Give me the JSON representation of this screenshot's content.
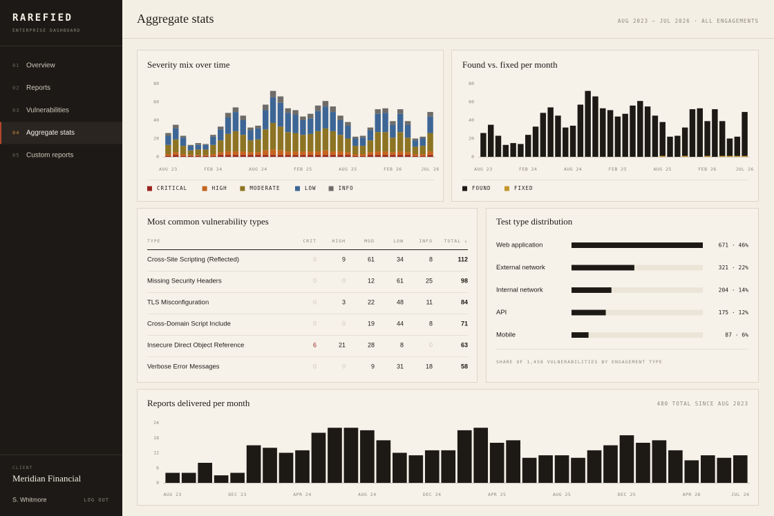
{
  "sidebar": {
    "brand": "RAREFIED",
    "tagline": "ENTERPRISE DASHBOARD",
    "nav": [
      {
        "number": "01",
        "label": "Overview",
        "active": false
      },
      {
        "number": "02",
        "label": "Reports",
        "active": false
      },
      {
        "number": "03",
        "label": "Vulnerabilities",
        "active": false
      },
      {
        "number": "04",
        "label": "Aggregate stats",
        "active": true
      },
      {
        "number": "05",
        "label": "Custom reports",
        "active": false
      }
    ],
    "client_label": "CLIENT",
    "client": "Meridian Financial",
    "user": "S. Whitmore",
    "logout": "LOG OUT"
  },
  "header": {
    "title": "Aggregate stats",
    "range": "AUG 2023 – JUL 2026 · ALL ENGAGEMENTS"
  },
  "chart_data": [
    {
      "type": "stacked_bar",
      "title": "Severity mix over time",
      "categories": [
        "AUG 23",
        null,
        null,
        null,
        null,
        null,
        "FEB 24",
        null,
        null,
        null,
        null,
        null,
        "AUG 24",
        null,
        null,
        null,
        null,
        null,
        "FEB 25",
        null,
        null,
        null,
        null,
        null,
        "AUG 25",
        null,
        null,
        null,
        null,
        null,
        "FEB 26",
        null,
        null,
        null,
        null,
        "JUL 26"
      ],
      "series": [
        {
          "name": "CRITICAL",
          "color": "#9a2420",
          "values": [
            1,
            2,
            1,
            1,
            1,
            1,
            1,
            2,
            2,
            2,
            2,
            2,
            2,
            2,
            2,
            2,
            2,
            2,
            2,
            2,
            2,
            2,
            2,
            2,
            2,
            1,
            1,
            2,
            2,
            2,
            2,
            2,
            2,
            1,
            1,
            2
          ]
        },
        {
          "name": "HIGH",
          "color": "#c4651f",
          "values": [
            2,
            3,
            2,
            1,
            1,
            1,
            2,
            3,
            4,
            4,
            4,
            3,
            3,
            5,
            6,
            5,
            4,
            4,
            4,
            4,
            4,
            5,
            4,
            4,
            3,
            2,
            2,
            3,
            4,
            4,
            3,
            4,
            3,
            2,
            2,
            4
          ]
        },
        {
          "name": "MODERATE",
          "color": "#8c7424",
          "values": [
            10,
            14,
            9,
            5,
            6,
            6,
            10,
            13,
            19,
            22,
            18,
            13,
            14,
            23,
            29,
            26,
            21,
            20,
            18,
            19,
            22,
            24,
            22,
            18,
            15,
            9,
            9,
            13,
            21,
            21,
            16,
            21,
            16,
            8,
            9,
            20
          ]
        },
        {
          "name": "LOW",
          "color": "#3d6696",
          "values": [
            10,
            12,
            9,
            5,
            5,
            5,
            9,
            12,
            18,
            21,
            16,
            11,
            12,
            21,
            28,
            26,
            21,
            20,
            16,
            17,
            22,
            24,
            21,
            16,
            14,
            8,
            9,
            11,
            20,
            21,
            14,
            20,
            14,
            7,
            8,
            18
          ]
        },
        {
          "name": "INFO",
          "color": "#6e6c69",
          "values": [
            3,
            4,
            2,
            1,
            2,
            1,
            2,
            3,
            5,
            5,
            5,
            3,
            3,
            6,
            7,
            7,
            5,
            5,
            4,
            5,
            6,
            6,
            6,
            5,
            4,
            2,
            2,
            3,
            5,
            5,
            4,
            5,
            4,
            2,
            2,
            5
          ]
        }
      ],
      "ylim": [
        0,
        80
      ],
      "yticks": [
        0,
        20,
        40,
        60,
        80
      ],
      "grid": false
    },
    {
      "type": "overlay_bar",
      "title": "Found vs. fixed per month",
      "categories": [
        "AUG 23",
        null,
        null,
        null,
        null,
        null,
        "FEB 24",
        null,
        null,
        null,
        null,
        null,
        "AUG 24",
        null,
        null,
        null,
        null,
        null,
        "FEB 25",
        null,
        null,
        null,
        null,
        null,
        "AUG 25",
        null,
        null,
        null,
        null,
        null,
        "FEB 26",
        null,
        null,
        null,
        null,
        "JUL 26"
      ],
      "series": [
        {
          "name": "FOUND",
          "color": "#1d1a16",
          "values": [
            26,
            35,
            23,
            13,
            15,
            14,
            24,
            33,
            48,
            54,
            45,
            32,
            34,
            57,
            72,
            66,
            53,
            51,
            44,
            47,
            56,
            61,
            55,
            45,
            38,
            22,
            23,
            32,
            52,
            53,
            39,
            52,
            39,
            20,
            22,
            49
          ]
        },
        {
          "name": "FIXED",
          "color": "#c4962f",
          "values": [
            0,
            0,
            0,
            0,
            0,
            0,
            0,
            0,
            0,
            0,
            0,
            0,
            0,
            0,
            0,
            0,
            0,
            0,
            0,
            0,
            0,
            0,
            0,
            0,
            1,
            0,
            0,
            1,
            0,
            0,
            1,
            0,
            1,
            1,
            1,
            1
          ]
        }
      ],
      "ylim": [
        0,
        80
      ],
      "yticks": [
        0,
        20,
        40,
        60,
        80
      ],
      "grid": false
    },
    {
      "type": "bar",
      "title": "Reports delivered per month",
      "subtitle": "480 TOTAL SINCE AUG 2023",
      "categories": [
        "AUG 23",
        null,
        null,
        null,
        "DEC 23",
        null,
        null,
        null,
        "APR 24",
        null,
        null,
        null,
        "AUG 24",
        null,
        null,
        null,
        "DEC 24",
        null,
        null,
        null,
        "APR 25",
        null,
        null,
        null,
        "AUG 25",
        null,
        null,
        null,
        "DEC 25",
        null,
        null,
        null,
        "APR 26",
        null,
        null,
        "JUL 26"
      ],
      "values": [
        4,
        4,
        8,
        3,
        4,
        15,
        14,
        12,
        13,
        20,
        22,
        22,
        21,
        17,
        12,
        11,
        13,
        13,
        21,
        22,
        16,
        17,
        10,
        11,
        11,
        10,
        13,
        15,
        19,
        16,
        17,
        13,
        9,
        11,
        10,
        11
      ],
      "color": "#1d1a16",
      "ylim": [
        0,
        24
      ],
      "yticks": [
        0,
        6,
        12,
        18,
        24
      ],
      "grid": false
    },
    {
      "type": "hbar",
      "title": "Test type distribution",
      "categories": [
        "Web application",
        "External network",
        "Internal network",
        "API",
        "Mobile"
      ],
      "values": [
        671,
        321,
        204,
        175,
        87
      ],
      "value_labels": [
        "671 · 46%",
        "321 · 22%",
        "204 · 14%",
        "175 · 12%",
        "87 · 6%"
      ],
      "color": "#1d1a16",
      "track_color": "#ebe5d8",
      "xlim": [
        0,
        671
      ],
      "note": "SHARE OF 1,458 VULNERABILITIES BY ENGAGEMENT TYPE"
    }
  ],
  "table": {
    "title": "Most common vulnerability types",
    "columns": [
      "TYPE",
      "CRIT",
      "HIGH",
      "MOD",
      "LOW",
      "INFO",
      "TOTAL ↓"
    ],
    "rows": [
      [
        "Cross-Site Scripting (Reflected)",
        0,
        9,
        61,
        34,
        8,
        112
      ],
      [
        "Missing Security Headers",
        0,
        0,
        12,
        61,
        25,
        98
      ],
      [
        "TLS Misconfiguration",
        0,
        3,
        22,
        48,
        11,
        84
      ],
      [
        "Cross-Domain Script Include",
        0,
        0,
        19,
        44,
        8,
        71
      ],
      [
        "Insecure Direct Object Reference",
        6,
        21,
        28,
        8,
        0,
        63
      ],
      [
        "Verbose Error Messages",
        0,
        0,
        9,
        31,
        18,
        58
      ]
    ]
  }
}
